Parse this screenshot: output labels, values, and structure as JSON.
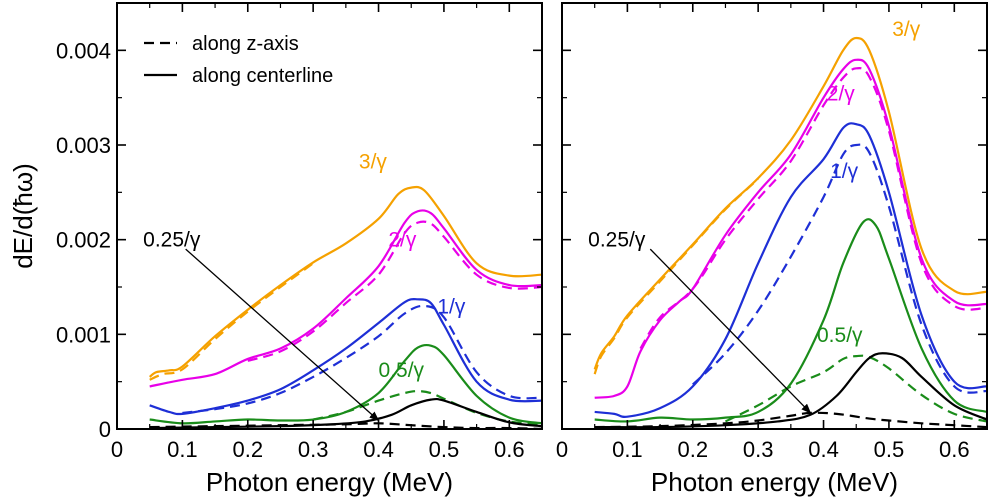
{
  "chart_data": [
    {
      "type": "line",
      "panel": "left",
      "xlabel": "Photon energy (MeV)",
      "ylabel": "dE/d(ħω)",
      "xlim": [
        0,
        0.65
      ],
      "ylim": [
        0,
        0.0045
      ],
      "xticks": [
        0,
        0.1,
        0.2,
        0.3,
        0.4,
        0.5,
        0.6
      ],
      "xtick_labels": [
        "0",
        "0.1",
        "0.2",
        "0.3",
        "0.4",
        "0.5",
        "0.6"
      ],
      "yticks": [
        0,
        0.001,
        0.002,
        0.003,
        0.004
      ],
      "ytick_labels": [
        "0",
        "0.001",
        "0.002",
        "0.003",
        "0.004"
      ],
      "legend": [
        {
          "label": "along z-axis",
          "style": "dashed"
        },
        {
          "label": "along centerline",
          "style": "solid"
        }
      ],
      "annotation": {
        "text": "0.25/γ",
        "text_at": [
          0.04,
          0.00193
        ],
        "arrow_tail": [
          0.105,
          0.0019
        ],
        "arrow_head": [
          0.4,
          9e-05
        ]
      },
      "series": [
        {
          "name": "3/γ",
          "color": "#f5a100",
          "style": "solid",
          "x": [
            0.05,
            0.06,
            0.08,
            0.1,
            0.15,
            0.2,
            0.25,
            0.3,
            0.35,
            0.4,
            0.43,
            0.45,
            0.47,
            0.5,
            0.55,
            0.6,
            0.65
          ],
          "y": [
            0.00055,
            0.0006,
            0.00062,
            0.00066,
            0.00098,
            0.00126,
            0.00152,
            0.00176,
            0.00196,
            0.00222,
            0.00248,
            0.00255,
            0.00252,
            0.00225,
            0.00175,
            0.00162,
            0.00163
          ]
        },
        {
          "name": "3/γ",
          "color": "#f5a100",
          "style": "dashed",
          "x": [
            0.05,
            0.07,
            0.1,
            0.15,
            0.2,
            0.25,
            0.3
          ],
          "y": [
            0.00052,
            0.00058,
            0.00063,
            0.00095,
            0.00124,
            0.0015,
            0.00175
          ]
        },
        {
          "name": "2/γ",
          "color": "#e800e8",
          "style": "solid",
          "x": [
            0.05,
            0.1,
            0.15,
            0.2,
            0.25,
            0.3,
            0.35,
            0.4,
            0.44,
            0.46,
            0.48,
            0.5,
            0.55,
            0.6,
            0.65
          ],
          "y": [
            0.00045,
            0.00052,
            0.00058,
            0.00074,
            0.00085,
            0.00106,
            0.00138,
            0.00172,
            0.00218,
            0.0023,
            0.00228,
            0.00212,
            0.00168,
            0.00152,
            0.00152
          ]
        },
        {
          "name": "2/γ",
          "color": "#e800e8",
          "style": "dashed",
          "x": [
            0.2,
            0.25,
            0.3,
            0.35,
            0.4,
            0.44,
            0.46,
            0.48,
            0.5,
            0.55,
            0.6,
            0.65
          ],
          "y": [
            0.00072,
            0.00082,
            0.00103,
            0.00133,
            0.00163,
            0.00207,
            0.00218,
            0.00217,
            0.00203,
            0.00163,
            0.00149,
            0.0015
          ]
        },
        {
          "name": "1/γ",
          "color": "#1e2fd6",
          "style": "solid",
          "x": [
            0.05,
            0.08,
            0.1,
            0.15,
            0.2,
            0.25,
            0.3,
            0.35,
            0.4,
            0.44,
            0.46,
            0.48,
            0.5,
            0.55,
            0.6,
            0.65
          ],
          "y": [
            0.00025,
            0.00018,
            0.00016,
            0.00022,
            0.0003,
            0.00042,
            0.00062,
            0.00085,
            0.00112,
            0.00134,
            0.00137,
            0.00133,
            0.0011,
            0.0005,
            0.00031,
            0.0003
          ]
        },
        {
          "name": "1/γ",
          "color": "#1e2fd6",
          "style": "dashed",
          "x": [
            0.1,
            0.15,
            0.2,
            0.25,
            0.3,
            0.35,
            0.4,
            0.44,
            0.47,
            0.5,
            0.55,
            0.6,
            0.65
          ],
          "y": [
            0.00017,
            0.00021,
            0.00027,
            0.00038,
            0.00055,
            0.00075,
            0.00098,
            0.00122,
            0.0013,
            0.00118,
            0.0006,
            0.00035,
            0.00033
          ]
        },
        {
          "name": "0.5/γ",
          "color": "#1a8c1a",
          "style": "solid",
          "x": [
            0.05,
            0.1,
            0.15,
            0.2,
            0.25,
            0.3,
            0.35,
            0.4,
            0.44,
            0.46,
            0.48,
            0.5,
            0.55,
            0.6,
            0.65
          ],
          "y": [
            0.0001,
            6e-05,
            8e-05,
            0.0001,
            9e-05,
            0.0001,
            0.00018,
            0.00038,
            0.00072,
            0.00086,
            0.00088,
            0.00078,
            0.00035,
            0.00012,
            6e-05
          ]
        },
        {
          "name": "0.5/γ",
          "color": "#1a8c1a",
          "style": "dashed",
          "x": [
            0.3,
            0.35,
            0.4,
            0.44,
            0.46,
            0.48,
            0.5,
            0.55,
            0.6,
            0.65
          ],
          "y": [
            0.0001,
            0.00018,
            0.0003,
            0.00038,
            0.0004,
            0.00038,
            0.00032,
            0.00017,
            8e-05,
            5e-05
          ]
        },
        {
          "name": "0.25/γ",
          "color": "#000000",
          "style": "solid",
          "x": [
            0.05,
            0.15,
            0.25,
            0.33,
            0.38,
            0.42,
            0.45,
            0.48,
            0.5,
            0.55,
            0.6,
            0.65
          ],
          "y": [
            1e-05,
            2e-05,
            3e-05,
            5e-05,
            8e-05,
            0.00015,
            0.00025,
            0.00031,
            0.0003,
            0.00018,
            7e-05,
            3e-05
          ]
        },
        {
          "name": "0.25/γ",
          "color": "#000000",
          "style": "dashed",
          "x": [
            0.05,
            0.15,
            0.25,
            0.35,
            0.4,
            0.45,
            0.5,
            0.55,
            0.6,
            0.65
          ],
          "y": [
            2e-05,
            3e-05,
            4e-05,
            5e-05,
            6e-05,
            4e-05,
            2e-05,
            1e-05,
            1e-05,
            0.0
          ]
        }
      ],
      "labels": [
        {
          "text": "3/γ",
          "color": "#f5a100",
          "at": [
            0.37,
            0.00275
          ]
        },
        {
          "text": "2/γ",
          "color": "#e800e8",
          "at": [
            0.415,
            0.00193
          ]
        },
        {
          "text": "1/γ",
          "color": "#1e2fd6",
          "at": [
            0.49,
            0.00122
          ]
        },
        {
          "text": "0.5/γ",
          "color": "#1a8c1a",
          "at": [
            0.4,
            0.00055
          ]
        }
      ]
    },
    {
      "type": "line",
      "panel": "right",
      "xlabel": "Photon energy (MeV)",
      "xlim": [
        0,
        0.65
      ],
      "ylim": [
        0,
        0.0045
      ],
      "xticks": [
        0,
        0.1,
        0.2,
        0.3,
        0.4,
        0.5,
        0.6
      ],
      "xtick_labels": [
        "0",
        "0.1",
        "0.2",
        "0.3",
        "0.4",
        "0.5",
        "0.6"
      ],
      "yticks": [
        0,
        0.001,
        0.002,
        0.003,
        0.004
      ],
      "annotation": {
        "text": "0.25/γ",
        "text_at": [
          0.04,
          0.00193
        ],
        "arrow_tail": [
          0.135,
          0.0019
        ],
        "arrow_head": [
          0.38,
          0.00017
        ]
      },
      "series": [
        {
          "name": "3/γ",
          "color": "#f5a100",
          "style": "solid",
          "x": [
            0.05,
            0.06,
            0.08,
            0.1,
            0.15,
            0.2,
            0.25,
            0.3,
            0.35,
            0.4,
            0.43,
            0.45,
            0.47,
            0.5,
            0.55,
            0.6,
            0.65
          ],
          "y": [
            0.00063,
            0.0008,
            0.00098,
            0.0012,
            0.00158,
            0.00195,
            0.00233,
            0.00265,
            0.00305,
            0.00362,
            0.004,
            0.00413,
            0.004,
            0.00335,
            0.0019,
            0.00146,
            0.00145
          ]
        },
        {
          "name": "3/γ",
          "color": "#f5a100",
          "style": "dashed",
          "x": [
            0.05,
            0.06,
            0.08,
            0.1,
            0.15,
            0.2,
            0.25,
            0.3
          ],
          "y": [
            0.00058,
            0.00077,
            0.00096,
            0.00118,
            0.00156,
            0.00194,
            0.00232,
            0.00264
          ]
        },
        {
          "name": "2/γ",
          "color": "#e800e8",
          "style": "solid",
          "x": [
            0.05,
            0.08,
            0.1,
            0.12,
            0.15,
            0.18,
            0.2,
            0.25,
            0.3,
            0.35,
            0.4,
            0.43,
            0.45,
            0.47,
            0.5,
            0.55,
            0.6,
            0.65
          ],
          "y": [
            0.00033,
            0.00035,
            0.00045,
            0.00082,
            0.00115,
            0.00135,
            0.00148,
            0.00205,
            0.0025,
            0.0029,
            0.0035,
            0.0038,
            0.0039,
            0.0038,
            0.0032,
            0.0018,
            0.00135,
            0.00132
          ]
        },
        {
          "name": "2/γ",
          "color": "#e800e8",
          "style": "dashed",
          "x": [
            0.12,
            0.15,
            0.2,
            0.25,
            0.3,
            0.35,
            0.4,
            0.43,
            0.45,
            0.47,
            0.5,
            0.55,
            0.6,
            0.65
          ],
          "y": [
            0.00085,
            0.00118,
            0.00148,
            0.002,
            0.00243,
            0.00283,
            0.00342,
            0.00371,
            0.00381,
            0.00372,
            0.00315,
            0.00175,
            0.0013,
            0.00128
          ]
        },
        {
          "name": "1/γ",
          "color": "#1e2fd6",
          "style": "solid",
          "x": [
            0.05,
            0.08,
            0.1,
            0.15,
            0.2,
            0.25,
            0.3,
            0.35,
            0.4,
            0.43,
            0.45,
            0.47,
            0.5,
            0.55,
            0.6,
            0.65
          ],
          "y": [
            0.00018,
            0.00016,
            0.00013,
            0.00022,
            0.00045,
            0.00095,
            0.00175,
            0.00245,
            0.00285,
            0.00318,
            0.00322,
            0.0031,
            0.0025,
            0.0012,
            0.0005,
            0.00045
          ]
        },
        {
          "name": "1/γ",
          "color": "#1e2fd6",
          "style": "dashed",
          "x": [
            0.2,
            0.25,
            0.3,
            0.35,
            0.4,
            0.43,
            0.45,
            0.47,
            0.5,
            0.55,
            0.6,
            0.65
          ],
          "y": [
            0.00047,
            0.0008,
            0.00125,
            0.00182,
            0.00245,
            0.0029,
            0.003,
            0.00292,
            0.00235,
            0.0011,
            0.00045,
            0.0004
          ]
        },
        {
          "name": "0.5/γ",
          "color": "#1a8c1a",
          "style": "solid",
          "x": [
            0.05,
            0.1,
            0.15,
            0.2,
            0.25,
            0.3,
            0.35,
            0.4,
            0.43,
            0.46,
            0.48,
            0.5,
            0.55,
            0.6,
            0.65
          ],
          "y": [
            0.0001,
            8e-05,
            0.00012,
            0.0001,
            0.00012,
            0.00018,
            0.00048,
            0.00115,
            0.00175,
            0.00218,
            0.00215,
            0.0018,
            0.00085,
            0.0003,
            0.00018
          ]
        },
        {
          "name": "0.5/γ",
          "color": "#1a8c1a",
          "style": "dashed",
          "x": [
            0.25,
            0.3,
            0.35,
            0.4,
            0.43,
            0.45,
            0.47,
            0.5,
            0.55,
            0.6,
            0.65
          ],
          "y": [
            8e-05,
            0.00025,
            0.00045,
            0.0006,
            0.00074,
            0.00077,
            0.00076,
            0.00064,
            0.00036,
            0.00016,
            8e-05
          ]
        },
        {
          "name": "0.25/γ",
          "color": "#000000",
          "style": "solid",
          "x": [
            0.05,
            0.15,
            0.25,
            0.33,
            0.38,
            0.42,
            0.45,
            0.47,
            0.49,
            0.52,
            0.55,
            0.6,
            0.65
          ],
          "y": [
            2e-05,
            2e-05,
            4e-05,
            8e-05,
            0.00015,
            0.00035,
            0.0006,
            0.00075,
            0.0008,
            0.00075,
            0.00055,
            0.00025,
            0.0001
          ]
        },
        {
          "name": "0.25/γ",
          "color": "#000000",
          "style": "dashed",
          "x": [
            0.05,
            0.15,
            0.25,
            0.3,
            0.35,
            0.38,
            0.42,
            0.47,
            0.5,
            0.55,
            0.6,
            0.65
          ],
          "y": [
            2e-05,
            3e-05,
            6e-05,
            9e-05,
            0.00014,
            0.00017,
            0.00016,
            0.00011,
            9e-05,
            6e-05,
            4e-05,
            2e-05
          ]
        }
      ],
      "labels": [
        {
          "text": "3/γ",
          "color": "#f5a100",
          "at": [
            0.505,
            0.00415
          ]
        },
        {
          "text": "2/γ",
          "color": "#e800e8",
          "at": [
            0.405,
            0.00347
          ]
        },
        {
          "text": "1/γ",
          "color": "#1e2fd6",
          "at": [
            0.41,
            0.00265
          ]
        },
        {
          "text": "0.5/γ",
          "color": "#1a8c1a",
          "at": [
            0.39,
            0.00092
          ]
        }
      ]
    }
  ]
}
